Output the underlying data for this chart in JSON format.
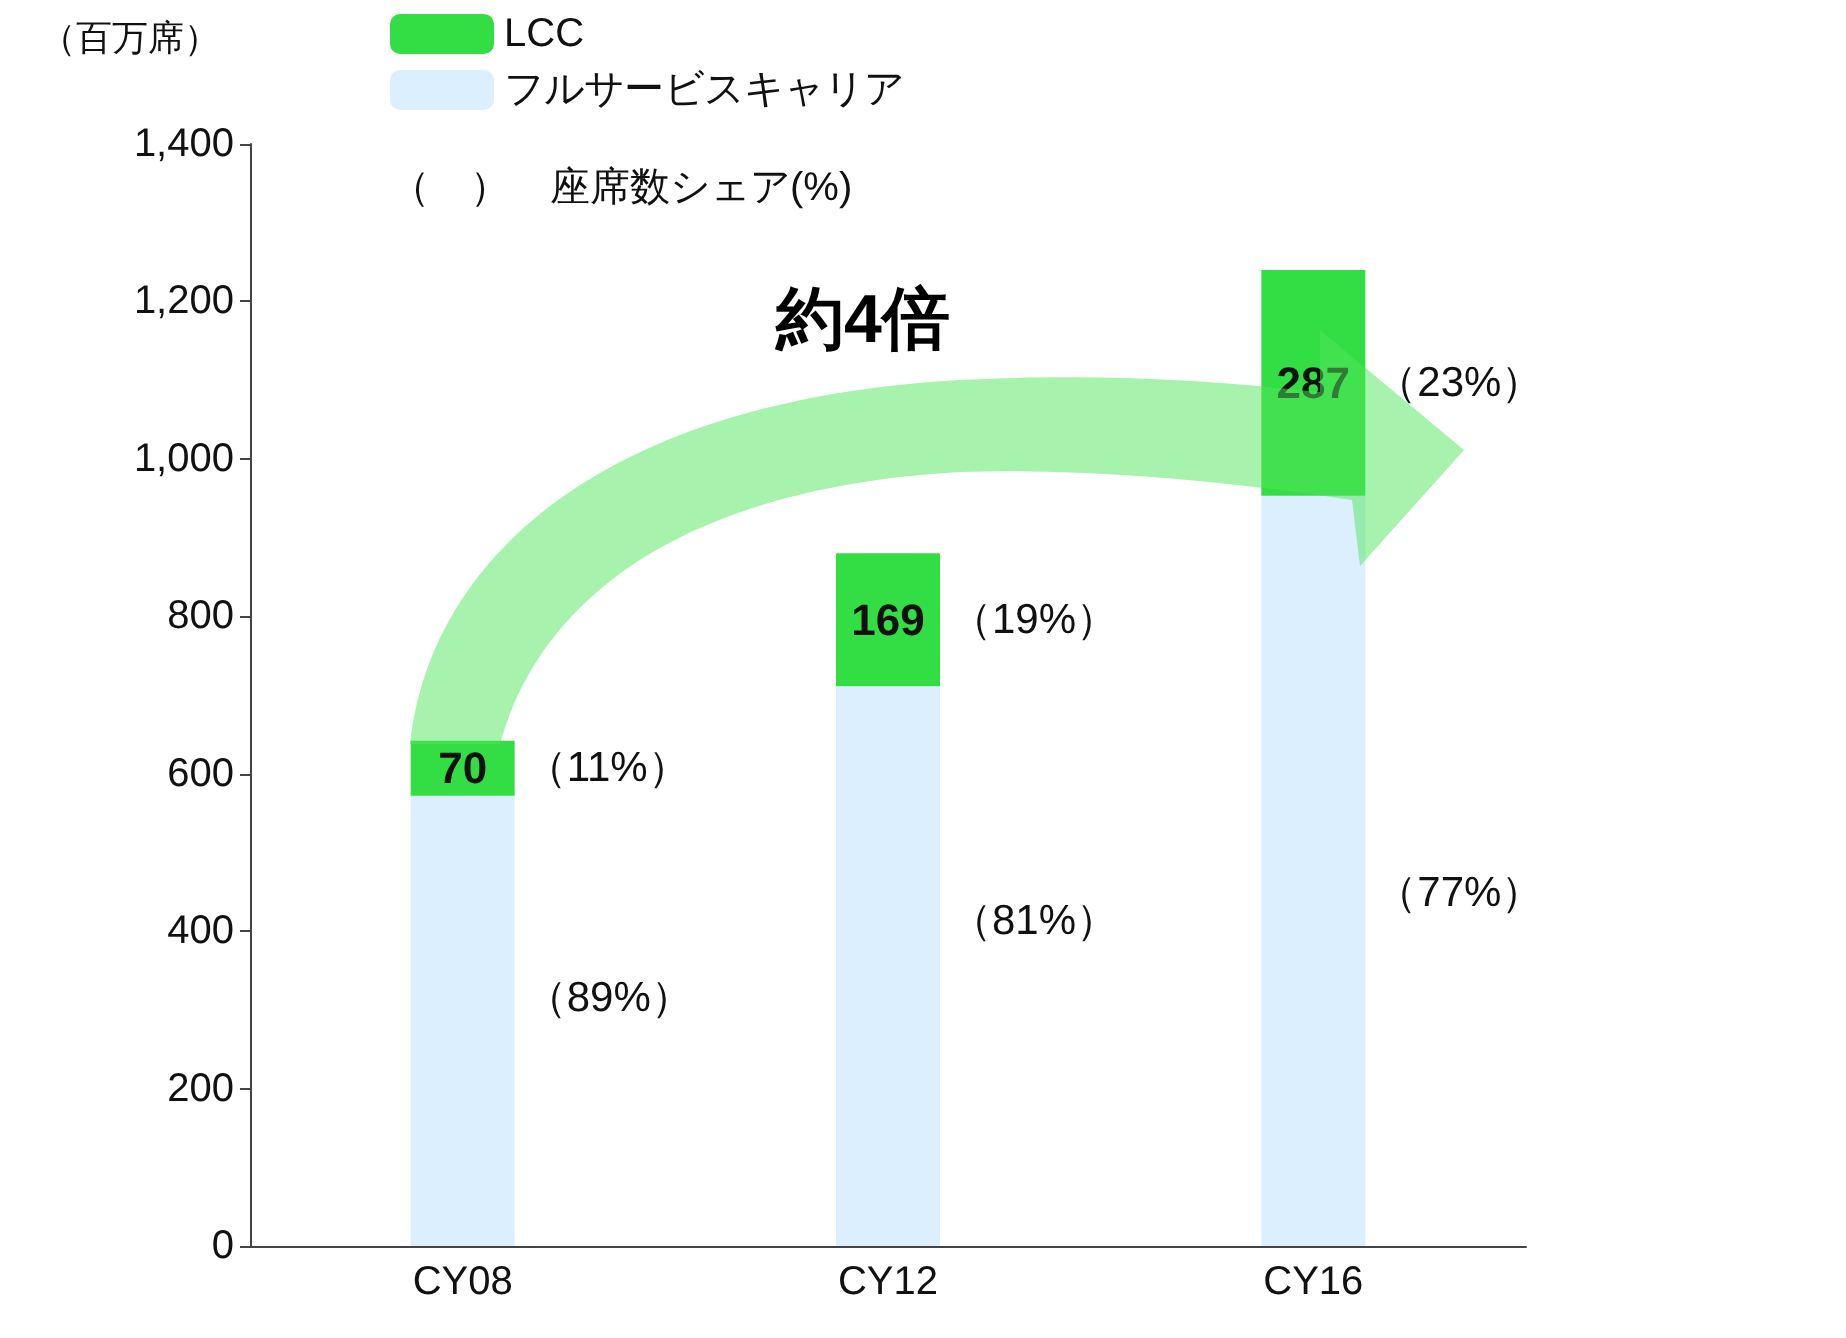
{
  "chart_data": {
    "type": "bar",
    "stacked": true,
    "ylabel": "（百万席）",
    "categories": [
      "CY08",
      "CY12",
      "CY16"
    ],
    "series": [
      {
        "name": "フルサービスキャリア",
        "color": "#dcefff",
        "values": [
          572,
          711,
          953
        ]
      },
      {
        "name": "LCC",
        "color": "#33dd44",
        "values": [
          70,
          169,
          287
        ],
        "value_labels": [
          "70",
          "169",
          "287"
        ]
      }
    ],
    "ylim": [
      0,
      1400
    ],
    "yticks": [
      0,
      {
        "value": 200,
        "label": "200"
      },
      {
        "value": 400,
        "label": "400"
      },
      {
        "value": 600,
        "label": "600"
      },
      {
        "value": 800,
        "label": "800"
      },
      {
        "value": 1000,
        "label": "1,000"
      },
      {
        "value": 1200,
        "label": "1,200"
      },
      {
        "value": 1400,
        "label": "1,400"
      }
    ],
    "grid": false,
    "legend": "top left",
    "annotations": [
      "（　）　座席数シェア(%)",
      "約4倍",
      "（11%）",
      "（19%）",
      "（23%）",
      "（89%）",
      "（81%）",
      "（77%）"
    ]
  }
}
